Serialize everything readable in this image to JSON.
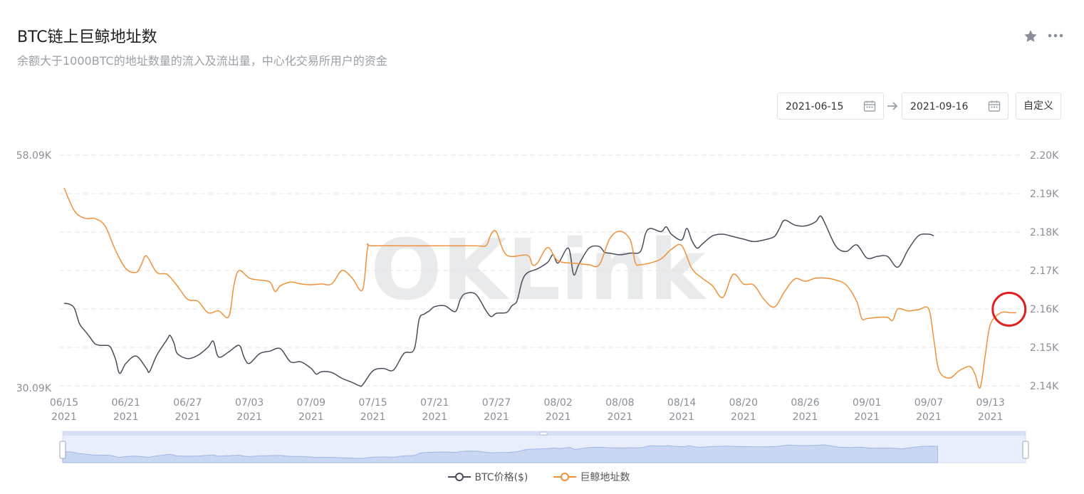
{
  "header": {
    "title": "BTC链上巨鲸地址数",
    "subtitle": "余额大于1000BTC的地址数量的流入及流出量，中心化交易所用户的资金",
    "icons": [
      "star-icon",
      "more-icon"
    ]
  },
  "date_range": {
    "start": "2021-06-15",
    "end": "2021-09-16",
    "custom_label": "自定义"
  },
  "watermark": "OKLink",
  "colors": {
    "btc": "#4a4c5c",
    "whale": "#f0913a",
    "highlight": "#e02020",
    "grid": "#e3e3e3"
  },
  "chart_data": {
    "type": "line",
    "x_tick_labels": [
      {
        "date": "06/15",
        "year": "2021"
      },
      {
        "date": "06/21",
        "year": "2021"
      },
      {
        "date": "06/27",
        "year": "2021"
      },
      {
        "date": "07/03",
        "year": "2021"
      },
      {
        "date": "07/09",
        "year": "2021"
      },
      {
        "date": "07/15",
        "year": "2021"
      },
      {
        "date": "07/21",
        "year": "2021"
      },
      {
        "date": "07/27",
        "year": "2021"
      },
      {
        "date": "08/02",
        "year": "2021"
      },
      {
        "date": "08/08",
        "year": "2021"
      },
      {
        "date": "08/14",
        "year": "2021"
      },
      {
        "date": "08/20",
        "year": "2021"
      },
      {
        "date": "08/26",
        "year": "2021"
      },
      {
        "date": "09/01",
        "year": "2021"
      },
      {
        "date": "09/07",
        "year": "2021"
      },
      {
        "date": "09/13",
        "year": "2021"
      }
    ],
    "y_left": {
      "min_label": "30.09K",
      "max_label": "58.09K",
      "min": 30.09,
      "max": 58.09
    },
    "y_right": {
      "tick_labels": [
        "2.14K",
        "2.15K",
        "2.16K",
        "2.17K",
        "2.18K",
        "2.19K",
        "2.20K"
      ],
      "min": 2.14,
      "max": 2.2
    },
    "series": [
      {
        "name": "BTC价格($)",
        "axis": "left",
        "values": [
          [
            0,
            40.1
          ],
          [
            0.5,
            40.0
          ],
          [
            1,
            39.5
          ],
          [
            1.5,
            37.6
          ],
          [
            2,
            36.8
          ],
          [
            2.5,
            36.0
          ],
          [
            3,
            35.2
          ],
          [
            3.5,
            35.0
          ],
          [
            4,
            35.0
          ],
          [
            4.5,
            34.8
          ],
          [
            5,
            33.3
          ],
          [
            5.4,
            31.6
          ],
          [
            6,
            32.8
          ],
          [
            7,
            33.7
          ],
          [
            8,
            32.2
          ],
          [
            8.3,
            31.8
          ],
          [
            9,
            33.8
          ],
          [
            10,
            35.7
          ],
          [
            10.3,
            36.2
          ],
          [
            10.7,
            35.2
          ],
          [
            11,
            34.0
          ],
          [
            12,
            33.4
          ],
          [
            13,
            33.8
          ],
          [
            14,
            34.8
          ],
          [
            14.5,
            35.5
          ],
          [
            15,
            33.6
          ],
          [
            16,
            34.2
          ],
          [
            17,
            35.0
          ],
          [
            17.5,
            33.5
          ],
          [
            18,
            32.8
          ],
          [
            19,
            34.0
          ],
          [
            20,
            34.3
          ],
          [
            21,
            34.6
          ],
          [
            22,
            33.0
          ],
          [
            23,
            33.0
          ],
          [
            24,
            32.2
          ],
          [
            24.5,
            31.5
          ],
          [
            25,
            31.8
          ],
          [
            26,
            31.7
          ],
          [
            27,
            31.0
          ],
          [
            28,
            30.5
          ],
          [
            28.7,
            30.1
          ],
          [
            29,
            30.2
          ],
          [
            30,
            31.9
          ],
          [
            31,
            32.2
          ],
          [
            32,
            32.0
          ],
          [
            33,
            34.0
          ],
          [
            34,
            34.5
          ],
          [
            34.5,
            38.2
          ],
          [
            35,
            38.8
          ],
          [
            35.5,
            39.2
          ],
          [
            36,
            39.7
          ],
          [
            37,
            39.8
          ],
          [
            38,
            39.1
          ],
          [
            38.5,
            40.6
          ],
          [
            39,
            41.3
          ],
          [
            40,
            41.2
          ],
          [
            41,
            39.2
          ],
          [
            41.5,
            38.5
          ],
          [
            42,
            38.9
          ],
          [
            43,
            39.0
          ],
          [
            43.5,
            39.8
          ],
          [
            44,
            40.4
          ],
          [
            44.5,
            42.8
          ],
          [
            45,
            43.8
          ],
          [
            46,
            44.3
          ],
          [
            47,
            45.1
          ],
          [
            47.5,
            46.0
          ],
          [
            48,
            45.0
          ],
          [
            49,
            46.8
          ],
          [
            49.5,
            43.6
          ],
          [
            50,
            44.8
          ],
          [
            51,
            46.8
          ],
          [
            52,
            47.0
          ],
          [
            52.5,
            46.3
          ],
          [
            53,
            46.2
          ],
          [
            54,
            46.0
          ],
          [
            55,
            46.2
          ],
          [
            56,
            46.4
          ],
          [
            56.5,
            48.6
          ],
          [
            57,
            49.2
          ],
          [
            58,
            48.8
          ],
          [
            58.5,
            49.4
          ],
          [
            59,
            48.5
          ],
          [
            60,
            47.8
          ],
          [
            60.5,
            49.2
          ],
          [
            61,
            47.7
          ],
          [
            61.5,
            46.8
          ],
          [
            62,
            47.3
          ],
          [
            63,
            48.3
          ],
          [
            64,
            48.5
          ],
          [
            65,
            48.2
          ],
          [
            66,
            47.9
          ],
          [
            67,
            47.6
          ],
          [
            68,
            47.8
          ],
          [
            69,
            48.2
          ],
          [
            69.5,
            49.2
          ],
          [
            70,
            50.2
          ],
          [
            71,
            49.6
          ],
          [
            72,
            49.5
          ],
          [
            73,
            50.0
          ],
          [
            73.5,
            50.7
          ],
          [
            74,
            49.6
          ],
          [
            75,
            47.0
          ],
          [
            76,
            46.4
          ],
          [
            77,
            47.2
          ],
          [
            78,
            45.6
          ],
          [
            79,
            45.8
          ],
          [
            80,
            45.8
          ],
          [
            81,
            44.5
          ],
          [
            82,
            46.6
          ],
          [
            83,
            48.3
          ],
          [
            84,
            48.5
          ],
          [
            84.5,
            48.3
          ]
        ]
      },
      {
        "name": "巨鲸地址数",
        "axis": "right",
        "values": [
          [
            0,
            2.1915
          ],
          [
            1,
            2.1855
          ],
          [
            2,
            2.1836
          ],
          [
            3,
            2.1835
          ],
          [
            4,
            2.1815
          ],
          [
            5,
            2.1752
          ],
          [
            6,
            2.1705
          ],
          [
            7,
            2.1695
          ],
          [
            7.5,
            2.1715
          ],
          [
            8,
            2.1738
          ],
          [
            9,
            2.1695
          ],
          [
            10,
            2.169
          ],
          [
            11,
            2.166
          ],
          [
            12,
            2.1625
          ],
          [
            13,
            2.162
          ],
          [
            14,
            2.159
          ],
          [
            15,
            2.1595
          ],
          [
            16,
            2.158
          ],
          [
            16.5,
            2.1662
          ],
          [
            17,
            2.17
          ],
          [
            18,
            2.168
          ],
          [
            19,
            2.1675
          ],
          [
            20,
            2.167
          ],
          [
            20.5,
            2.1645
          ],
          [
            21,
            2.166
          ],
          [
            22,
            2.167
          ],
          [
            23,
            2.1665
          ],
          [
            24,
            2.1663
          ],
          [
            25,
            2.1665
          ],
          [
            26,
            2.1665
          ],
          [
            27,
            2.17
          ],
          [
            28,
            2.168
          ],
          [
            29,
            2.165
          ],
          [
            29.5,
            2.176
          ],
          [
            30,
            2.1764
          ],
          [
            35,
            2.1764
          ],
          [
            40,
            2.1764
          ],
          [
            41,
            2.1765
          ],
          [
            41.5,
            2.1795
          ],
          [
            42,
            2.18
          ],
          [
            43,
            2.174
          ],
          [
            45,
            2.174
          ],
          [
            45.5,
            2.1715
          ],
          [
            46,
            2.172
          ],
          [
            47,
            2.176
          ],
          [
            48,
            2.1725
          ],
          [
            50,
            2.1718
          ],
          [
            51,
            2.1715
          ],
          [
            52,
            2.1715
          ],
          [
            53,
            2.1782
          ],
          [
            54,
            2.1802
          ],
          [
            55,
            2.178
          ],
          [
            55.5,
            2.172
          ],
          [
            56,
            2.1715
          ],
          [
            57,
            2.172
          ],
          [
            58,
            2.173
          ],
          [
            59,
            2.1755
          ],
          [
            60,
            2.1765
          ],
          [
            61,
            2.1705
          ],
          [
            62,
            2.168
          ],
          [
            63,
            2.166
          ],
          [
            64,
            2.163
          ],
          [
            65,
            2.169
          ],
          [
            66,
            2.1665
          ],
          [
            67,
            2.1662
          ],
          [
            68,
            2.1625
          ],
          [
            69,
            2.1605
          ],
          [
            70,
            2.1645
          ],
          [
            71,
            2.1678
          ],
          [
            72,
            2.1672
          ],
          [
            73,
            2.168
          ],
          [
            74,
            2.168
          ],
          [
            75,
            2.1675
          ],
          [
            76,
            2.1662
          ],
          [
            77,
            2.162
          ],
          [
            77.5,
            2.1575
          ],
          [
            78,
            2.1575
          ],
          [
            79,
            2.1578
          ],
          [
            80,
            2.1578
          ],
          [
            80.5,
            2.157
          ],
          [
            81,
            2.16
          ],
          [
            82,
            2.1595
          ],
          [
            83,
            2.1598
          ],
          [
            84,
            2.16
          ],
          [
            84.5,
            2.152
          ],
          [
            85,
            2.144
          ],
          [
            86,
            2.142
          ],
          [
            87,
            2.144
          ],
          [
            88,
            2.145
          ],
          [
            88.5,
            2.143
          ],
          [
            89,
            2.1395
          ],
          [
            89.5,
            2.148
          ],
          [
            90,
            2.156
          ],
          [
            91,
            2.159
          ],
          [
            92,
            2.159
          ],
          [
            92.5,
            2.159
          ]
        ]
      }
    ],
    "x_range": [
      0,
      93
    ],
    "grid": "horizontal dashed",
    "legend_position": "bottom-center",
    "annotation": "red circle highlighting latest whale address count"
  },
  "legend": {
    "btc": "BTC价格($)",
    "whale": "巨鲸地址数"
  }
}
